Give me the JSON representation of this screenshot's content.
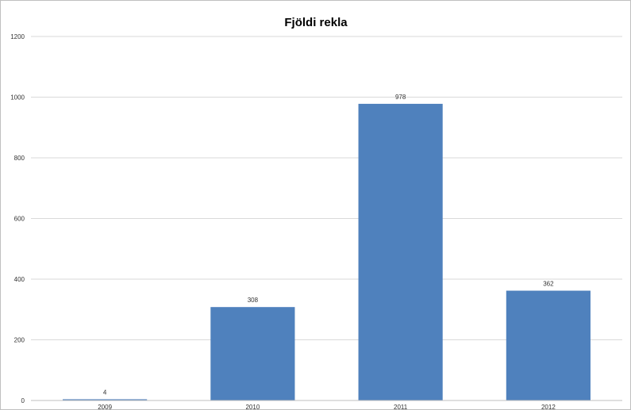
{
  "chart_data": {
    "type": "bar",
    "title": "Fjöldi rekla",
    "categories": [
      "2009",
      "2010",
      "2011",
      "2012"
    ],
    "values": [
      4,
      308,
      978,
      362
    ],
    "data_labels": [
      "4",
      "308",
      "978",
      "362"
    ],
    "ylim": [
      0,
      1200
    ],
    "yticks": [
      0,
      200,
      400,
      600,
      800,
      1000,
      1200
    ],
    "ytick_labels": [
      "0",
      "200",
      "400",
      "600",
      "800",
      "1000",
      "1200"
    ],
    "grid": true,
    "legend": false,
    "bar_color": "#4F81BD",
    "grid_color": "#d9d9d9"
  }
}
